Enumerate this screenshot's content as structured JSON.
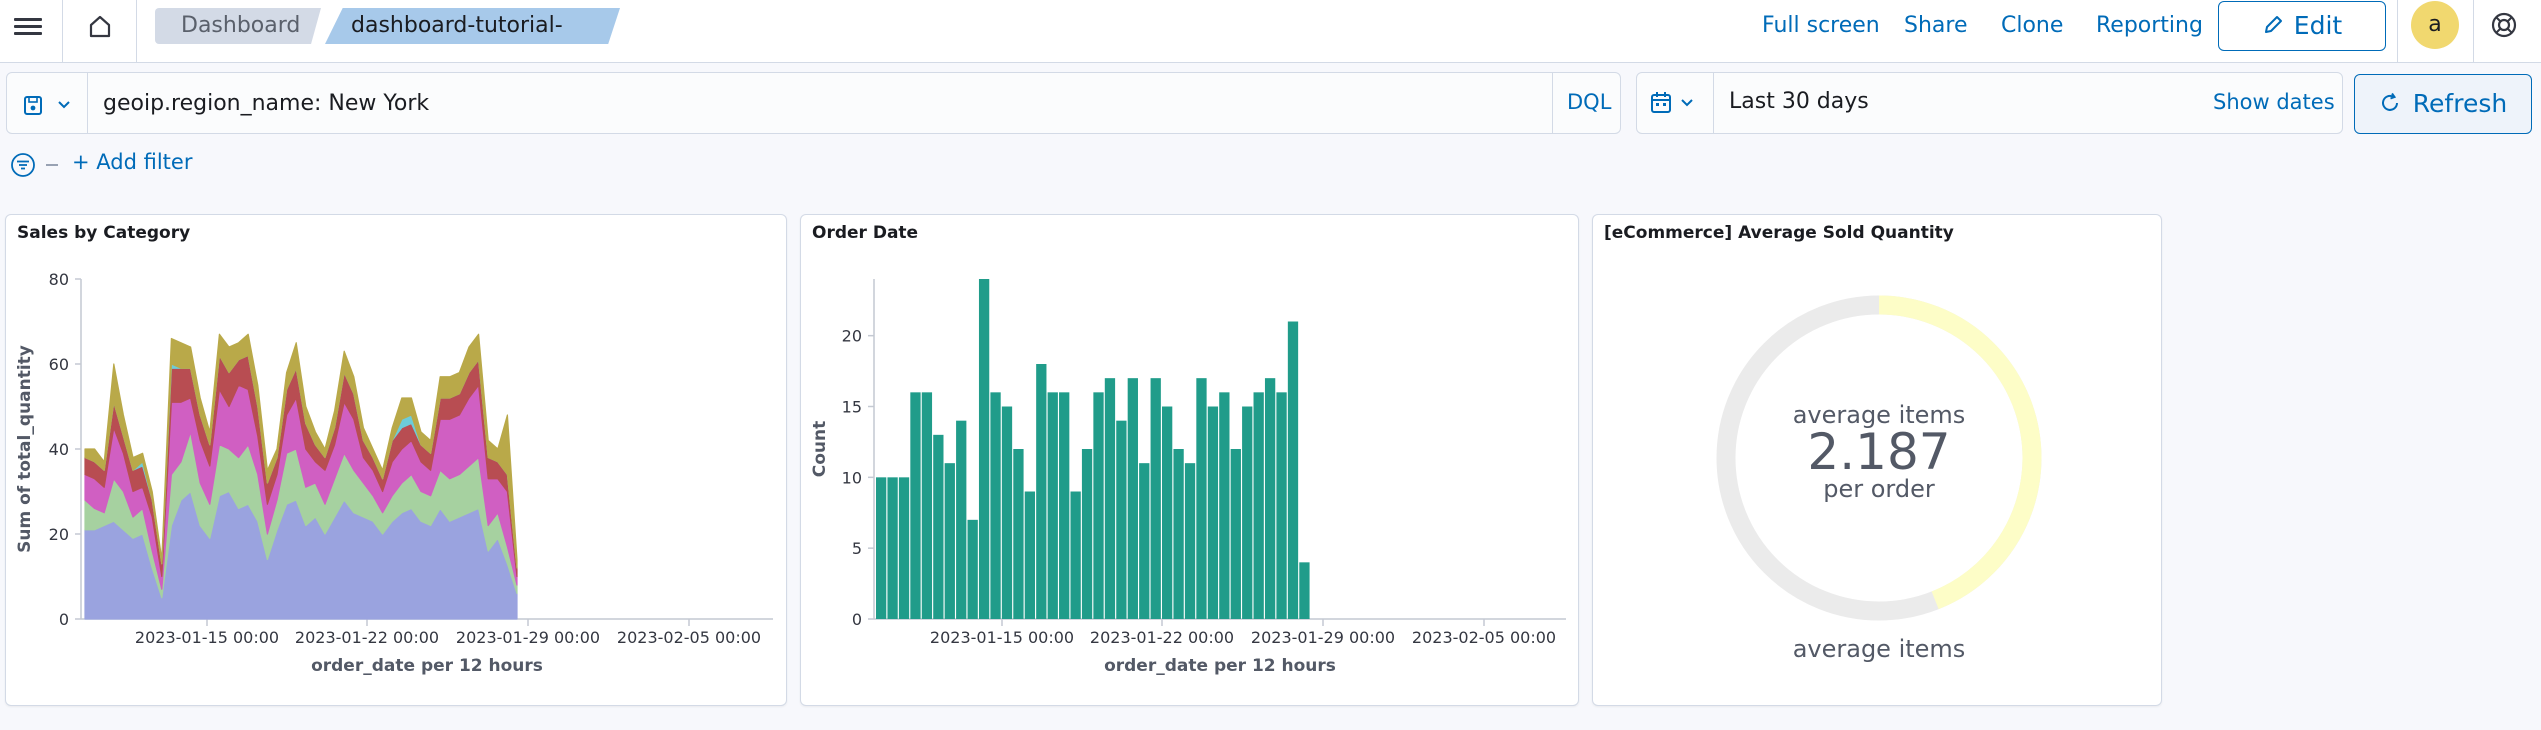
{
  "header": {
    "breadcrumbs": [
      "Dashboard",
      "dashboard-tutorial-final"
    ],
    "actions": {
      "full_screen": "Full screen",
      "share": "Share",
      "clone": "Clone",
      "reporting": "Reporting",
      "edit": "Edit"
    },
    "avatar_initial": "a"
  },
  "query_bar": {
    "query": "geoip.region_name: New York",
    "language": "DQL"
  },
  "date_picker": {
    "range": "Last 30 days",
    "show_dates": "Show dates",
    "refresh": "Refresh"
  },
  "filters": {
    "add_filter": "+ Add filter"
  },
  "panels": {
    "sales": {
      "title": "Sales by Category",
      "xlabel": "order_date per 12 hours",
      "ylabel": "Sum of total_quantity"
    },
    "orders": {
      "title": "Order Date",
      "xlabel": "order_date per 12 hours",
      "ylabel": "Count"
    },
    "avg": {
      "title": "[eCommerce] Average Sold Quantity",
      "metric_value": "2.187",
      "metric_top": "average items",
      "metric_bottom": "per order",
      "footer": "average items"
    }
  },
  "chart_data": [
    {
      "type": "area",
      "title": "Sales by Category",
      "xlabel": "order_date per 12 hours",
      "ylabel": "Sum of total_quantity",
      "ylim": [
        0,
        80
      ],
      "yticks": [
        0,
        20,
        40,
        60,
        80
      ],
      "xtick_labels": [
        "2023-01-15 00:00",
        "2023-01-22 00:00",
        "2023-01-29 00:00",
        "2023-02-05 00:00"
      ],
      "stacked": true,
      "series": [
        {
          "color": "#9aa3df",
          "values": [
            21,
            21,
            22,
            23,
            21,
            19,
            20,
            12,
            5,
            22,
            28,
            30,
            22,
            19,
            29,
            30,
            26,
            27,
            23,
            14,
            21,
            27,
            28,
            22,
            24,
            20,
            24,
            28,
            25,
            24,
            23,
            20,
            23,
            25,
            26,
            23,
            22,
            26,
            23,
            24,
            25,
            26,
            16,
            19,
            13,
            6
          ]
        },
        {
          "color": "#a6d1a0",
          "values": [
            7,
            5,
            3,
            10,
            9,
            5,
            6,
            4,
            2,
            12,
            9,
            14,
            10,
            8,
            12,
            10,
            12,
            14,
            11,
            6,
            7,
            12,
            12,
            9,
            8,
            7,
            9,
            11,
            10,
            8,
            6,
            5,
            6,
            7,
            8,
            7,
            7,
            9,
            10,
            10,
            11,
            12,
            6,
            6,
            4,
            2
          ]
        },
        {
          "color": "#d05fc2",
          "values": [
            6,
            7,
            6,
            12,
            9,
            6,
            5,
            8,
            3,
            17,
            14,
            8,
            10,
            9,
            13,
            10,
            17,
            13,
            9,
            7,
            6,
            9,
            12,
            9,
            5,
            8,
            8,
            12,
            12,
            6,
            6,
            5,
            8,
            8,
            8,
            7,
            6,
            12,
            14,
            14,
            16,
            17,
            11,
            8,
            13,
            2
          ]
        },
        {
          "color": "#b84d52",
          "values": [
            4,
            4,
            4,
            6,
            4,
            5,
            5,
            4,
            3,
            8,
            8,
            7,
            6,
            5,
            8,
            8,
            6,
            8,
            7,
            5,
            4,
            6,
            7,
            6,
            4,
            3,
            4,
            7,
            6,
            4,
            3,
            3,
            5,
            5,
            4,
            4,
            4,
            5,
            5,
            5,
            6,
            6,
            5,
            4,
            4,
            2
          ]
        },
        {
          "color": "#6dccd9",
          "values": [
            0,
            0,
            0,
            0,
            0,
            0,
            1,
            0,
            0,
            1,
            0,
            0,
            0,
            0,
            0,
            0,
            0,
            0,
            0,
            0,
            0,
            0,
            0,
            0,
            0,
            0,
            0,
            0,
            0,
            0,
            0,
            0,
            0,
            2,
            2,
            0,
            0,
            0,
            0,
            0,
            0,
            0,
            0,
            0,
            0,
            0
          ]
        },
        {
          "color": "#b9a949",
          "values": [
            2,
            3,
            2,
            9,
            5,
            3,
            2,
            2,
            1,
            6,
            6,
            5,
            4,
            3,
            5,
            6,
            4,
            5,
            5,
            3,
            2,
            4,
            6,
            4,
            3,
            2,
            4,
            5,
            4,
            3,
            2,
            2,
            3,
            5,
            4,
            3,
            3,
            5,
            5,
            5,
            6,
            6,
            4,
            3,
            14,
            2
          ]
        }
      ]
    },
    {
      "type": "bar",
      "title": "Order Date",
      "xlabel": "order_date per 12 hours",
      "ylabel": "Count",
      "ylim": [
        0,
        24
      ],
      "yticks": [
        0,
        5,
        10,
        15,
        20
      ],
      "xtick_labels": [
        "2023-01-15 00:00",
        "2023-01-22 00:00",
        "2023-01-29 00:00",
        "2023-02-05 00:00"
      ],
      "color": "#209c8a",
      "values": [
        10,
        10,
        10,
        16,
        16,
        13,
        11,
        14,
        7,
        24,
        16,
        15,
        12,
        9,
        18,
        16,
        16,
        9,
        12,
        16,
        17,
        14,
        17,
        11,
        17,
        15,
        12,
        11,
        17,
        15,
        16,
        12,
        15,
        16,
        17,
        16,
        21,
        4
      ]
    },
    {
      "type": "gauge",
      "title": "[eCommerce] Average Sold Quantity",
      "value": 2.187,
      "fraction": 0.44,
      "label": "average items"
    }
  ]
}
